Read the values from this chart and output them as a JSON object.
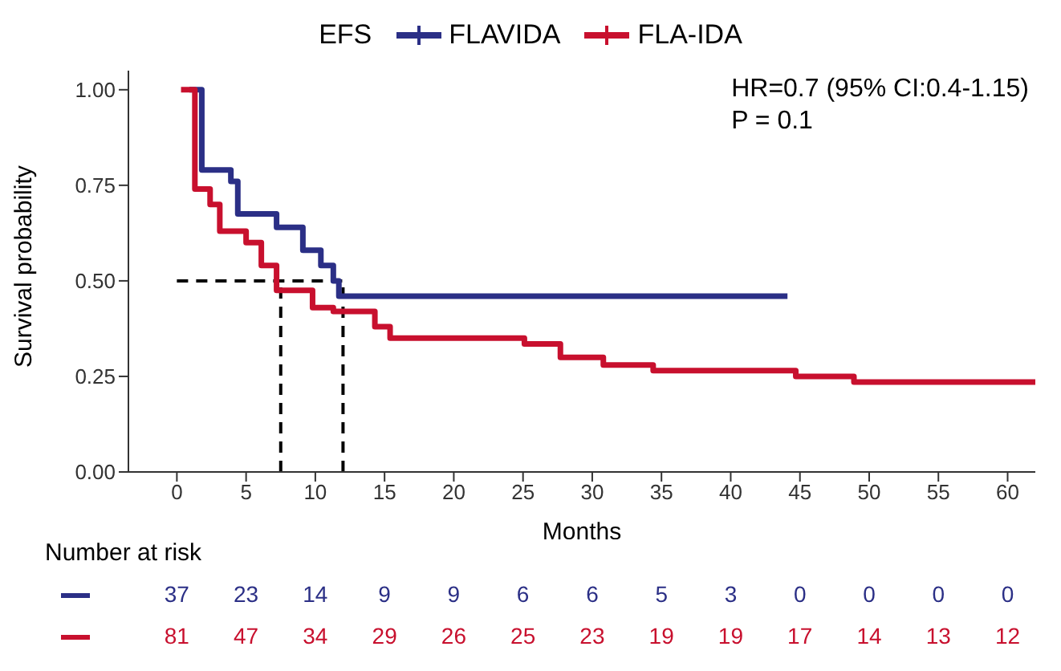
{
  "chart_data": {
    "type": "step",
    "legend_title": "EFS",
    "xlabel": "Months",
    "ylabel": "Survival probability",
    "series": [
      {
        "name": "FLAVIDA",
        "color": "#2b2f86",
        "x": [
          0.9,
          1.8,
          3.9,
          4.4,
          7.2,
          9.1,
          10.4,
          11.3,
          11.7,
          44.1
        ],
        "values": [
          1,
          0.79,
          0.76,
          0.675,
          0.64,
          0.58,
          0.54,
          0.5,
          0.46,
          0.46
        ]
      },
      {
        "name": "FLA-IDA",
        "color": "#c8102e",
        "x": [
          0.3,
          1.3,
          2.4,
          3.1,
          5,
          6.1,
          7.2,
          9.8,
          11.3,
          14.3,
          15.4,
          25.1,
          27.7,
          30.8,
          34.4,
          44.7,
          48.9,
          62
        ],
        "values": [
          1,
          0.74,
          0.7,
          0.63,
          0.6,
          0.54,
          0.475,
          0.43,
          0.42,
          0.38,
          0.35,
          0.335,
          0.3,
          0.28,
          0.265,
          0.25,
          0.235,
          0.235
        ]
      }
    ],
    "xlim": [
      -3.5,
      62
    ],
    "xticks": [
      0,
      5,
      10,
      15,
      20,
      25,
      30,
      35,
      40,
      45,
      50,
      55,
      60
    ],
    "ylim": [
      0,
      1.05
    ],
    "yticks": [
      {
        "value": 0,
        "label": "0.00"
      },
      {
        "value": 0.25,
        "label": "0.25"
      },
      {
        "value": 0.5,
        "label": "0.50"
      },
      {
        "value": 0.75,
        "label": "0.75"
      },
      {
        "value": 1,
        "label": "1.00"
      }
    ],
    "ref_lines": [
      {
        "axis": "y",
        "value": 0.5,
        "color": "#000000",
        "line_style": "dashed"
      },
      {
        "axis": "x",
        "value": 7.5,
        "color": "#000000",
        "line_style": "dashed"
      },
      {
        "axis": "x",
        "value": 12,
        "color": "#000000",
        "line_style": "dashed"
      }
    ],
    "legend": "top",
    "marker": "none",
    "line_style": "solid",
    "annotations": [
      "HR=0.7 (95% CI:0.4-1.15)",
      "P = 0.1",
      "Number at risk",
      "37",
      "23",
      "14",
      "9",
      "9",
      "6",
      "6",
      "5",
      "3",
      "0",
      "0",
      "0",
      "0",
      "81",
      "47",
      "34",
      "29",
      "26",
      "25",
      "23",
      "19",
      "19",
      "17",
      "14",
      "13",
      "12"
    ]
  }
}
